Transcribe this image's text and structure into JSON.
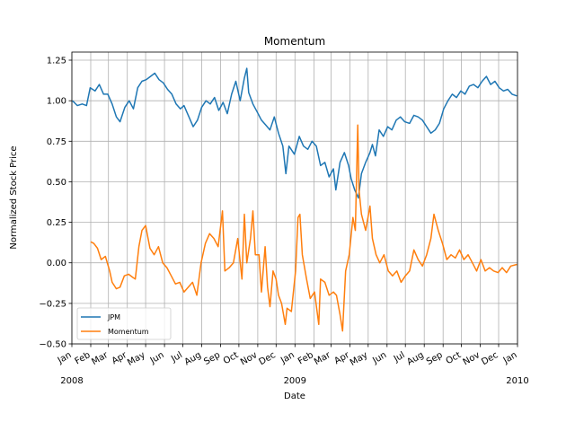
{
  "chart_data": {
    "type": "line",
    "title": "Momentum",
    "xlabel": "Date",
    "ylabel": "Normalized Stock Price",
    "ylim": [
      -0.5,
      1.3
    ],
    "xlim": [
      "2008-01-01",
      "2010-01-01"
    ],
    "grid": true,
    "legend": "lower-left",
    "colors": {
      "JPM": "#1f77b4",
      "Momentum": "#ff7f0e"
    },
    "y_ticks": [
      "−0.50",
      "−0.25",
      "0.00",
      "0.25",
      "0.50",
      "0.75",
      "1.00",
      "1.25"
    ],
    "y_tick_values": [
      -0.5,
      -0.25,
      0,
      0.25,
      0.5,
      0.75,
      1.0,
      1.25
    ],
    "x_ticks": [
      {
        "date": "2008-01-01",
        "label": "Jan"
      },
      {
        "date": "2008-02-01",
        "label": "Feb"
      },
      {
        "date": "2008-03-01",
        "label": "Mar"
      },
      {
        "date": "2008-04-01",
        "label": "Apr"
      },
      {
        "date": "2008-05-01",
        "label": "May"
      },
      {
        "date": "2008-06-01",
        "label": "Jun"
      },
      {
        "date": "2008-07-01",
        "label": "Jul"
      },
      {
        "date": "2008-08-01",
        "label": "Aug"
      },
      {
        "date": "2008-09-01",
        "label": "Sep"
      },
      {
        "date": "2008-10-01",
        "label": "Oct"
      },
      {
        "date": "2008-11-01",
        "label": "Nov"
      },
      {
        "date": "2008-12-01",
        "label": "Dec"
      },
      {
        "date": "2009-01-01",
        "label": "Jan"
      },
      {
        "date": "2009-02-01",
        "label": "Feb"
      },
      {
        "date": "2009-03-01",
        "label": "Mar"
      },
      {
        "date": "2009-04-01",
        "label": "Apr"
      },
      {
        "date": "2009-05-01",
        "label": "May"
      },
      {
        "date": "2009-06-01",
        "label": "Jun"
      },
      {
        "date": "2009-07-01",
        "label": "Jul"
      },
      {
        "date": "2009-08-01",
        "label": "Aug"
      },
      {
        "date": "2009-09-01",
        "label": "Sep"
      },
      {
        "date": "2009-10-01",
        "label": "Oct"
      },
      {
        "date": "2009-11-01",
        "label": "Nov"
      },
      {
        "date": "2009-12-01",
        "label": "Dec"
      },
      {
        "date": "2010-01-01",
        "label": "Jan"
      }
    ],
    "year_labels": [
      {
        "date": "2008-01-01",
        "label": "2008"
      },
      {
        "date": "2009-01-01",
        "label": "2009"
      },
      {
        "date": "2010-01-01",
        "label": "2010"
      }
    ],
    "series": [
      {
        "name": "JPM",
        "points": [
          [
            "2008-01-02",
            1.0
          ],
          [
            "2008-01-10",
            0.97
          ],
          [
            "2008-01-18",
            0.98
          ],
          [
            "2008-01-25",
            0.97
          ],
          [
            "2008-01-31",
            1.08
          ],
          [
            "2008-02-08",
            1.06
          ],
          [
            "2008-02-15",
            1.1
          ],
          [
            "2008-02-22",
            1.04
          ],
          [
            "2008-02-29",
            1.04
          ],
          [
            "2008-03-07",
            0.98
          ],
          [
            "2008-03-14",
            0.9
          ],
          [
            "2008-03-20",
            0.87
          ],
          [
            "2008-03-28",
            0.96
          ],
          [
            "2008-04-04",
            1.0
          ],
          [
            "2008-04-11",
            0.95
          ],
          [
            "2008-04-18",
            1.08
          ],
          [
            "2008-04-25",
            1.12
          ],
          [
            "2008-05-02",
            1.13
          ],
          [
            "2008-05-09",
            1.15
          ],
          [
            "2008-05-16",
            1.17
          ],
          [
            "2008-05-23",
            1.13
          ],
          [
            "2008-05-30",
            1.11
          ],
          [
            "2008-06-06",
            1.07
          ],
          [
            "2008-06-13",
            1.04
          ],
          [
            "2008-06-20",
            0.98
          ],
          [
            "2008-06-27",
            0.95
          ],
          [
            "2008-07-03",
            0.97
          ],
          [
            "2008-07-11",
            0.9
          ],
          [
            "2008-07-18",
            0.84
          ],
          [
            "2008-07-25",
            0.88
          ],
          [
            "2008-08-01",
            0.96
          ],
          [
            "2008-08-08",
            1.0
          ],
          [
            "2008-08-15",
            0.98
          ],
          [
            "2008-08-22",
            1.02
          ],
          [
            "2008-08-29",
            0.94
          ],
          [
            "2008-09-05",
            0.99
          ],
          [
            "2008-09-12",
            0.92
          ],
          [
            "2008-09-19",
            1.04
          ],
          [
            "2008-09-26",
            1.12
          ],
          [
            "2008-10-03",
            1.0
          ],
          [
            "2008-10-10",
            1.14
          ],
          [
            "2008-10-14",
            1.2
          ],
          [
            "2008-10-17",
            1.05
          ],
          [
            "2008-10-24",
            0.98
          ],
          [
            "2008-10-31",
            0.93
          ],
          [
            "2008-11-07",
            0.88
          ],
          [
            "2008-11-14",
            0.85
          ],
          [
            "2008-11-21",
            0.82
          ],
          [
            "2008-11-28",
            0.9
          ],
          [
            "2008-12-05",
            0.8
          ],
          [
            "2008-12-12",
            0.72
          ],
          [
            "2008-12-17",
            0.55
          ],
          [
            "2008-12-22",
            0.72
          ],
          [
            "2008-12-31",
            0.67
          ],
          [
            "2009-01-08",
            0.78
          ],
          [
            "2009-01-15",
            0.72
          ],
          [
            "2009-01-22",
            0.7
          ],
          [
            "2009-01-29",
            0.75
          ],
          [
            "2009-02-05",
            0.72
          ],
          [
            "2009-02-12",
            0.6
          ],
          [
            "2009-02-19",
            0.62
          ],
          [
            "2009-02-26",
            0.53
          ],
          [
            "2009-03-05",
            0.58
          ],
          [
            "2009-03-09",
            0.45
          ],
          [
            "2009-03-16",
            0.62
          ],
          [
            "2009-03-23",
            0.68
          ],
          [
            "2009-03-30",
            0.6
          ],
          [
            "2009-04-03",
            0.52
          ],
          [
            "2009-04-09",
            0.45
          ],
          [
            "2009-04-15",
            0.4
          ],
          [
            "2009-04-20",
            0.55
          ],
          [
            "2009-04-27",
            0.62
          ],
          [
            "2009-05-04",
            0.68
          ],
          [
            "2009-05-08",
            0.73
          ],
          [
            "2009-05-13",
            0.66
          ],
          [
            "2009-05-19",
            0.82
          ],
          [
            "2009-05-26",
            0.78
          ],
          [
            "2009-06-02",
            0.84
          ],
          [
            "2009-06-09",
            0.82
          ],
          [
            "2009-06-16",
            0.88
          ],
          [
            "2009-06-23",
            0.9
          ],
          [
            "2009-06-30",
            0.87
          ],
          [
            "2009-07-08",
            0.86
          ],
          [
            "2009-07-15",
            0.91
          ],
          [
            "2009-07-22",
            0.9
          ],
          [
            "2009-07-29",
            0.88
          ],
          [
            "2009-08-05",
            0.84
          ],
          [
            "2009-08-12",
            0.8
          ],
          [
            "2009-08-19",
            0.82
          ],
          [
            "2009-08-26",
            0.86
          ],
          [
            "2009-09-02",
            0.95
          ],
          [
            "2009-09-09",
            1.0
          ],
          [
            "2009-09-16",
            1.04
          ],
          [
            "2009-09-23",
            1.02
          ],
          [
            "2009-09-30",
            1.06
          ],
          [
            "2009-10-07",
            1.04
          ],
          [
            "2009-10-14",
            1.09
          ],
          [
            "2009-10-21",
            1.1
          ],
          [
            "2009-10-28",
            1.08
          ],
          [
            "2009-11-04",
            1.12
          ],
          [
            "2009-11-11",
            1.15
          ],
          [
            "2009-11-18",
            1.1
          ],
          [
            "2009-11-25",
            1.12
          ],
          [
            "2009-12-02",
            1.08
          ],
          [
            "2009-12-09",
            1.06
          ],
          [
            "2009-12-16",
            1.07
          ],
          [
            "2009-12-23",
            1.04
          ],
          [
            "2009-12-31",
            1.03
          ]
        ]
      },
      {
        "name": "Momentum",
        "points": [
          [
            "2008-02-01",
            0.13
          ],
          [
            "2008-02-06",
            0.12
          ],
          [
            "2008-02-12",
            0.09
          ],
          [
            "2008-02-18",
            0.02
          ],
          [
            "2008-02-25",
            0.04
          ],
          [
            "2008-03-03",
            -0.05
          ],
          [
            "2008-03-07",
            -0.12
          ],
          [
            "2008-03-14",
            -0.16
          ],
          [
            "2008-03-20",
            -0.15
          ],
          [
            "2008-03-27",
            -0.08
          ],
          [
            "2008-04-03",
            -0.07
          ],
          [
            "2008-04-10",
            -0.09
          ],
          [
            "2008-04-14",
            -0.1
          ],
          [
            "2008-04-20",
            0.1
          ],
          [
            "2008-04-25",
            0.2
          ],
          [
            "2008-05-01",
            0.23
          ],
          [
            "2008-05-08",
            0.09
          ],
          [
            "2008-05-15",
            0.05
          ],
          [
            "2008-05-22",
            0.1
          ],
          [
            "2008-05-29",
            0.0
          ],
          [
            "2008-06-05",
            -0.03
          ],
          [
            "2008-06-12",
            -0.08
          ],
          [
            "2008-06-19",
            -0.13
          ],
          [
            "2008-06-26",
            -0.12
          ],
          [
            "2008-07-03",
            -0.18
          ],
          [
            "2008-07-10",
            -0.15
          ],
          [
            "2008-07-17",
            -0.12
          ],
          [
            "2008-07-24",
            -0.2
          ],
          [
            "2008-07-31",
            0.0
          ],
          [
            "2008-08-07",
            0.12
          ],
          [
            "2008-08-14",
            0.18
          ],
          [
            "2008-08-21",
            0.15
          ],
          [
            "2008-08-28",
            0.1
          ],
          [
            "2008-09-04",
            0.32
          ],
          [
            "2008-09-08",
            -0.05
          ],
          [
            "2008-09-15",
            -0.03
          ],
          [
            "2008-09-22",
            0.0
          ],
          [
            "2008-09-29",
            0.15
          ],
          [
            "2008-10-06",
            -0.1
          ],
          [
            "2008-10-10",
            0.3
          ],
          [
            "2008-10-14",
            0.0
          ],
          [
            "2008-10-20",
            0.15
          ],
          [
            "2008-10-24",
            0.32
          ],
          [
            "2008-10-28",
            0.05
          ],
          [
            "2008-11-03",
            0.05
          ],
          [
            "2008-11-07",
            -0.18
          ],
          [
            "2008-11-13",
            0.1
          ],
          [
            "2008-11-17",
            -0.15
          ],
          [
            "2008-11-21",
            -0.27
          ],
          [
            "2008-11-26",
            -0.05
          ],
          [
            "2008-12-01",
            -0.1
          ],
          [
            "2008-12-05",
            -0.2
          ],
          [
            "2008-12-10",
            -0.25
          ],
          [
            "2008-12-16",
            -0.38
          ],
          [
            "2008-12-19",
            -0.28
          ],
          [
            "2008-12-26",
            -0.3
          ],
          [
            "2009-01-02",
            -0.05
          ],
          [
            "2009-01-06",
            0.28
          ],
          [
            "2009-01-09",
            0.3
          ],
          [
            "2009-01-13",
            0.05
          ],
          [
            "2009-01-20",
            -0.1
          ],
          [
            "2009-01-26",
            -0.22
          ],
          [
            "2009-02-02",
            -0.18
          ],
          [
            "2009-02-09",
            -0.38
          ],
          [
            "2009-02-12",
            -0.1
          ],
          [
            "2009-02-19",
            -0.12
          ],
          [
            "2009-02-26",
            -0.2
          ],
          [
            "2009-03-05",
            -0.18
          ],
          [
            "2009-03-10",
            -0.2
          ],
          [
            "2009-03-16",
            -0.32
          ],
          [
            "2009-03-20",
            -0.42
          ],
          [
            "2009-03-25",
            -0.05
          ],
          [
            "2009-03-31",
            0.05
          ],
          [
            "2009-04-06",
            0.28
          ],
          [
            "2009-04-10",
            0.2
          ],
          [
            "2009-04-14",
            0.85
          ],
          [
            "2009-04-16",
            0.45
          ],
          [
            "2009-04-20",
            0.3
          ],
          [
            "2009-04-27",
            0.2
          ],
          [
            "2009-05-04",
            0.35
          ],
          [
            "2009-05-08",
            0.15
          ],
          [
            "2009-05-14",
            0.05
          ],
          [
            "2009-05-20",
            0.0
          ],
          [
            "2009-05-27",
            0.05
          ],
          [
            "2009-06-03",
            -0.05
          ],
          [
            "2009-06-10",
            -0.08
          ],
          [
            "2009-06-17",
            -0.05
          ],
          [
            "2009-06-24",
            -0.12
          ],
          [
            "2009-07-01",
            -0.08
          ],
          [
            "2009-07-08",
            -0.05
          ],
          [
            "2009-07-15",
            0.08
          ],
          [
            "2009-07-22",
            0.02
          ],
          [
            "2009-07-29",
            -0.02
          ],
          [
            "2009-08-05",
            0.05
          ],
          [
            "2009-08-12",
            0.15
          ],
          [
            "2009-08-17",
            0.3
          ],
          [
            "2009-08-24",
            0.2
          ],
          [
            "2009-08-31",
            0.12
          ],
          [
            "2009-09-07",
            0.02
          ],
          [
            "2009-09-14",
            0.05
          ],
          [
            "2009-09-21",
            0.03
          ],
          [
            "2009-09-28",
            0.08
          ],
          [
            "2009-10-05",
            0.02
          ],
          [
            "2009-10-12",
            0.05
          ],
          [
            "2009-10-19",
            0.0
          ],
          [
            "2009-10-26",
            -0.05
          ],
          [
            "2009-11-02",
            0.02
          ],
          [
            "2009-11-09",
            -0.05
          ],
          [
            "2009-11-16",
            -0.03
          ],
          [
            "2009-11-23",
            -0.05
          ],
          [
            "2009-11-30",
            -0.06
          ],
          [
            "2009-12-07",
            -0.03
          ],
          [
            "2009-12-14",
            -0.06
          ],
          [
            "2009-12-21",
            -0.02
          ],
          [
            "2009-12-31",
            -0.01
          ]
        ]
      }
    ]
  }
}
